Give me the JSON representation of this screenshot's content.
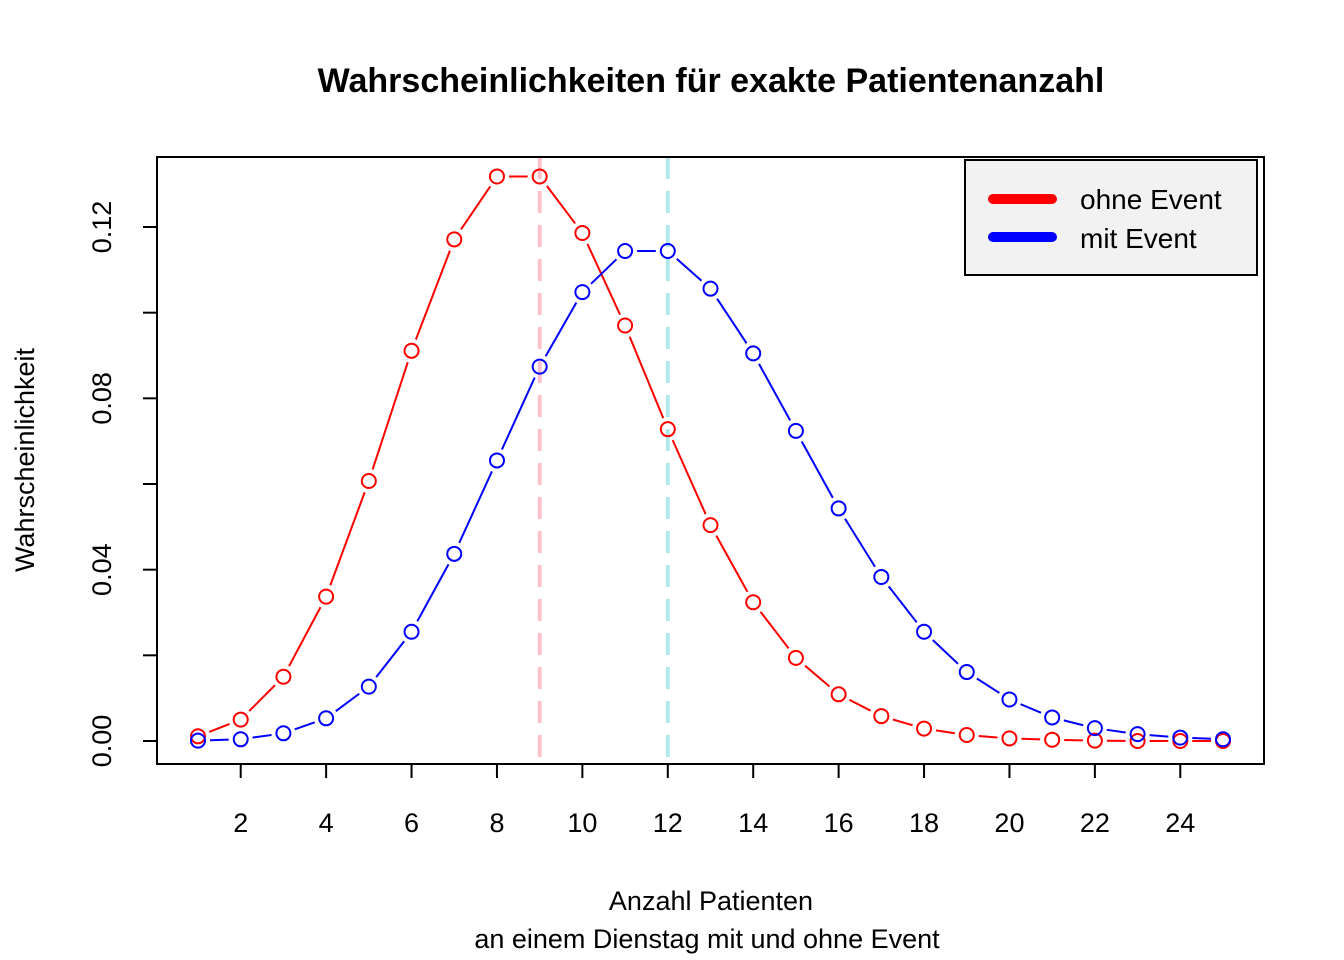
{
  "chart_data": {
    "type": "line",
    "title": "Wahrscheinlichkeiten für exakte Patientenanzahl",
    "xlabel": "Anzahl Patienten",
    "xlabel_sub": "an einem Dienstag mit und ohne Event",
    "ylabel": "Wahrscheinlichkeit",
    "xlim": [
      0,
      26
    ],
    "ylim": [
      -0.005,
      0.137
    ],
    "x_ticks": [
      "2",
      "4",
      "6",
      "8",
      "10",
      "12",
      "14",
      "16",
      "18",
      "20",
      "22",
      "24"
    ],
    "y_ticks": [
      "0.00",
      "0.04",
      "0.08",
      "0.12"
    ],
    "legend_position": "top-right",
    "x": [
      1,
      2,
      3,
      4,
      5,
      6,
      7,
      8,
      9,
      10,
      11,
      12,
      13,
      14,
      15,
      16,
      17,
      18,
      19,
      20,
      21,
      22,
      23,
      24,
      25
    ],
    "series": [
      {
        "name": "ohne Event",
        "color": "#ff0000",
        "values": [
          0.0011,
          0.005,
          0.015,
          0.0337,
          0.0607,
          0.0911,
          0.1171,
          0.1318,
          0.1318,
          0.1186,
          0.097,
          0.0728,
          0.0504,
          0.0324,
          0.0194,
          0.0109,
          0.0058,
          0.0029,
          0.0014,
          0.0006,
          0.0003,
          0.0001,
          0.0,
          0.0,
          0.0
        ]
      },
      {
        "name": "mit Event",
        "color": "#0000ff",
        "values": [
          0.0001,
          0.0004,
          0.0018,
          0.0053,
          0.0127,
          0.0255,
          0.0437,
          0.0655,
          0.0874,
          0.1048,
          0.1144,
          0.1144,
          0.1056,
          0.0905,
          0.0724,
          0.0543,
          0.0383,
          0.0255,
          0.0161,
          0.0097,
          0.0055,
          0.003,
          0.0016,
          0.0008,
          0.0004
        ]
      }
    ],
    "reference_lines": [
      {
        "x": 9,
        "color": "#ffc0cb"
      },
      {
        "x": 12,
        "color": "#b0eaea"
      }
    ]
  }
}
